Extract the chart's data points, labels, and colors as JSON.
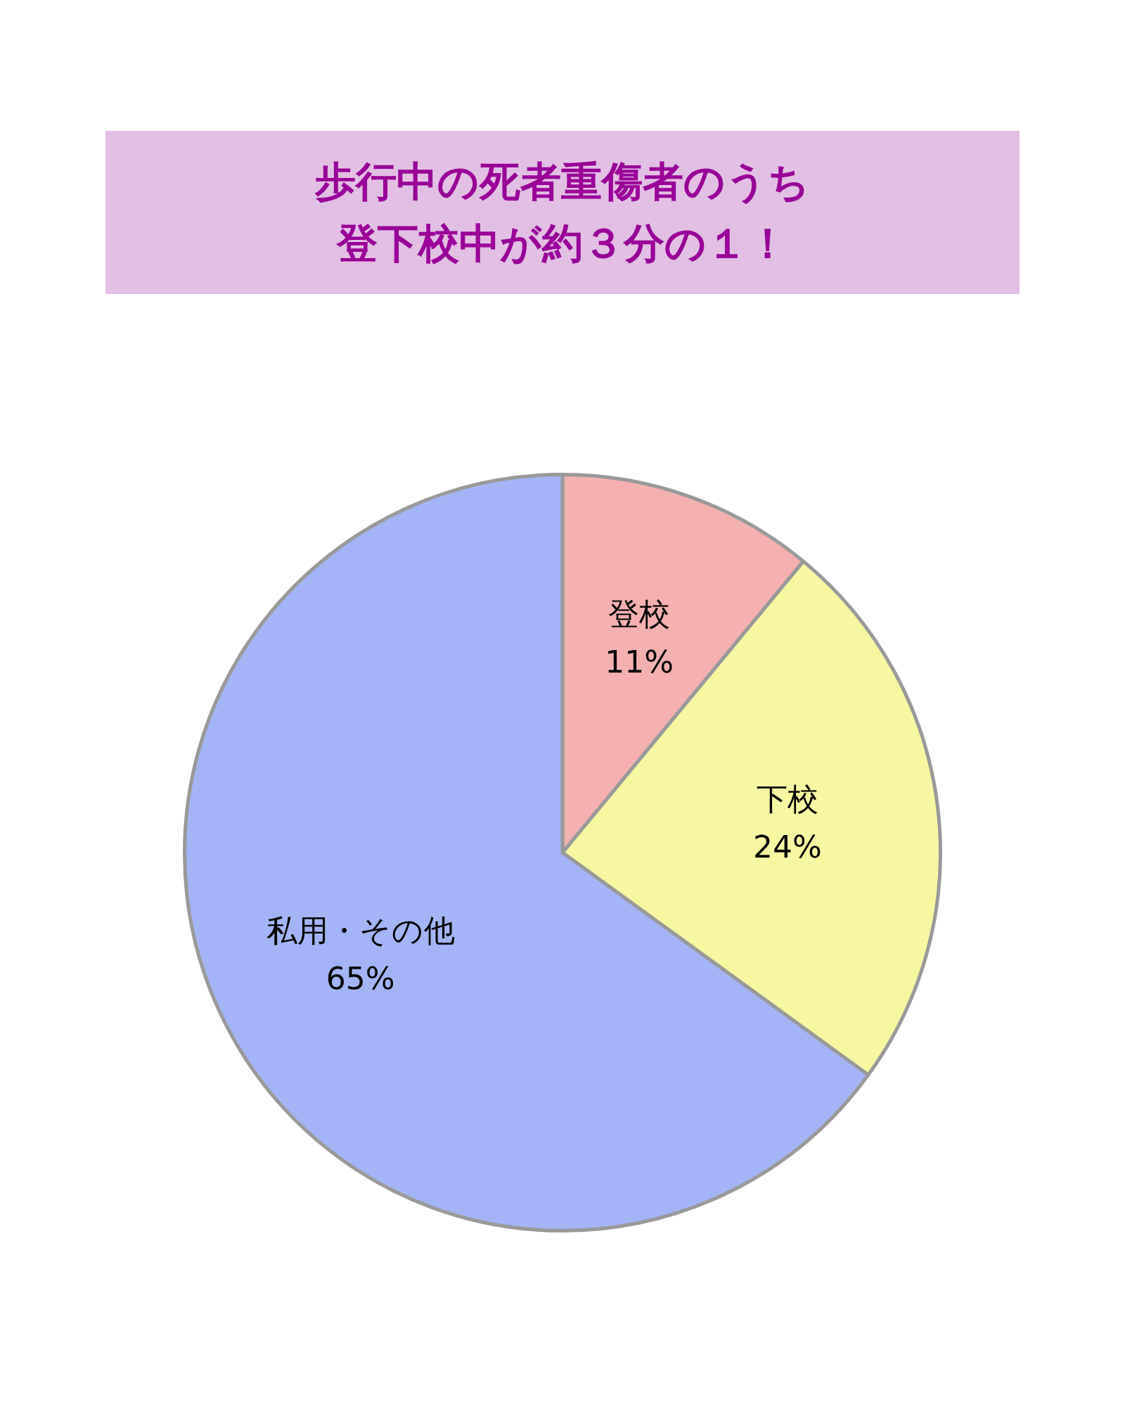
{
  "chart_data": {
    "type": "pie",
    "title": "歩行中の死者重傷者のうち登下校中が約３分の１！",
    "categories": [
      "登校",
      "下校",
      "私用・その他"
    ],
    "values": [
      11,
      24,
      65
    ],
    "value_labels": [
      "11%",
      "24%",
      "65%"
    ],
    "colors": [
      "#f5b0b0",
      "#f7f7a2",
      "#a3b5f6"
    ]
  }
}
